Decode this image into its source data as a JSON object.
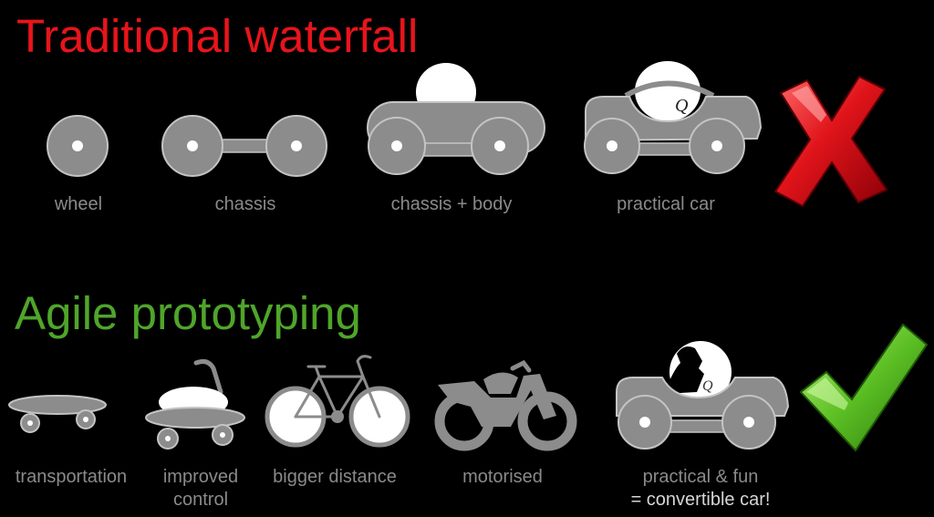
{
  "waterfall": {
    "title": "Traditional waterfall",
    "steps": [
      {
        "label": "wheel"
      },
      {
        "label": "chassis"
      },
      {
        "label": "chassis + body"
      },
      {
        "label": "practical car"
      }
    ],
    "result_icon": "red-x-icon"
  },
  "agile": {
    "title": "Agile prototyping",
    "steps": [
      {
        "label": "transportation"
      },
      {
        "label_line1": "improved",
        "label_line2": "control"
      },
      {
        "label": "bigger distance"
      },
      {
        "label": "motorised"
      },
      {
        "label_line1": "practical & fun",
        "label_line2": "= convertible car!"
      }
    ],
    "result_icon": "green-check-icon"
  },
  "colors": {
    "background": "#000000",
    "waterfall_title": "#e8141b",
    "agile_title": "#4fa52a",
    "label": "#8a8a8a",
    "vehicle_fill": "#8c8c8c",
    "vehicle_stroke": "#bdbdbd"
  }
}
